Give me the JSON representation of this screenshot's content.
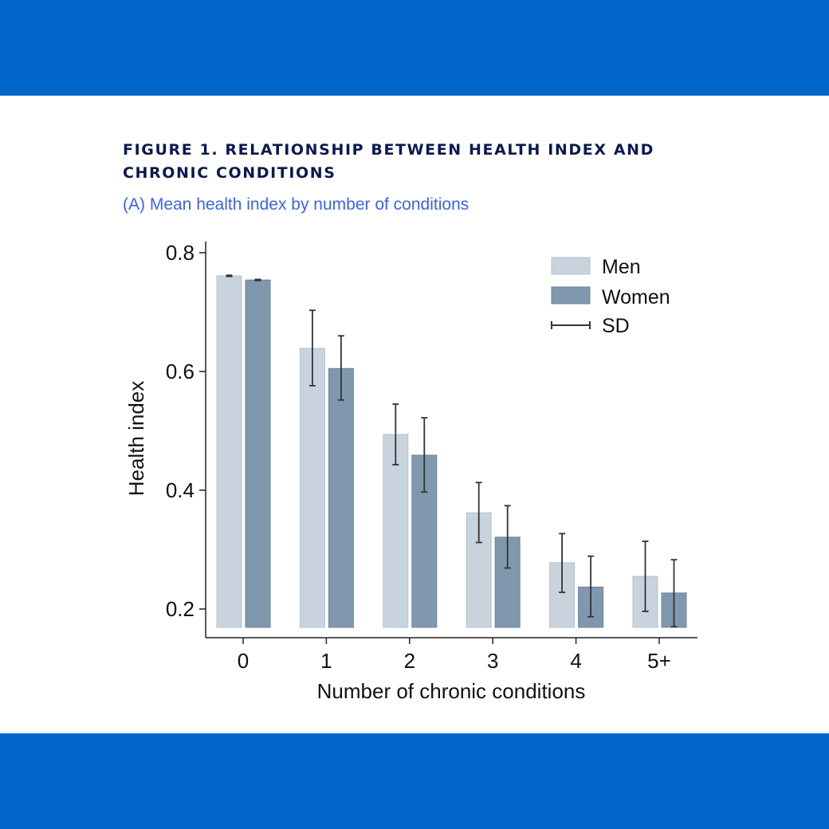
{
  "header": {
    "title": "FIGURE 1. RELATIONSHIP BETWEEN HEALTH INDEX AND CHRONIC CONDITIONS",
    "subtitle": "(A) Mean health index by number of conditions"
  },
  "colors": {
    "band": "#0066cc",
    "men": "#c8d3de",
    "women": "#8098ae",
    "title": "#0a1a4f",
    "subtitle": "#3a63f0"
  },
  "chart_data": {
    "type": "bar",
    "xlabel": "Number of chronic conditions",
    "ylabel": "Health index",
    "categories": [
      "0",
      "1",
      "2",
      "3",
      "4",
      "5+"
    ],
    "ylim": [
      0.17,
      0.82
    ],
    "yticks": [
      "0.2",
      "0.4",
      "0.6",
      "0.8"
    ],
    "ytick_values": [
      0.2,
      0.4,
      0.6,
      0.8
    ],
    "legend": {
      "placement": "top-right",
      "entries": [
        "Men",
        "Women",
        "SD"
      ]
    },
    "series": [
      {
        "name": "Men",
        "values": [
          0.761,
          0.639,
          0.494,
          0.362,
          0.278,
          0.255
        ],
        "err_high": [
          0.762,
          0.703,
          0.545,
          0.413,
          0.327,
          0.314
        ],
        "err_low": [
          0.76,
          0.576,
          0.443,
          0.312,
          0.228,
          0.196
        ]
      },
      {
        "name": "Women",
        "values": [
          0.754,
          0.605,
          0.459,
          0.321,
          0.237,
          0.227
        ],
        "err_high": [
          0.755,
          0.66,
          0.522,
          0.374,
          0.289,
          0.283
        ],
        "err_low": [
          0.753,
          0.552,
          0.397,
          0.269,
          0.187,
          0.17
        ]
      }
    ]
  }
}
